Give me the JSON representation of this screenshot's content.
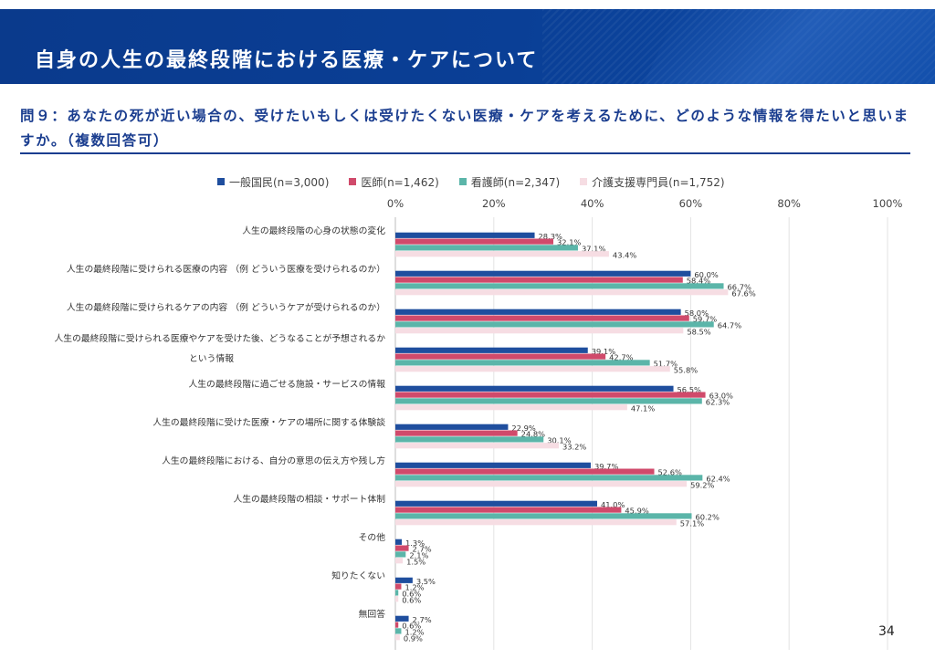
{
  "header": {
    "title": "自身の人生の最終段階における医療・ケアについて"
  },
  "question": {
    "text": "問９：あなたの死が近い場合の、受けたいもしくは受けたくない医療・ケアを考えるために、どのような情報を得たいと思いますか。（複数回答可）"
  },
  "page_number": "34",
  "chart_data": {
    "type": "bar",
    "orientation": "horizontal",
    "title": "",
    "xlim": [
      0,
      100
    ],
    "x_ticks": [
      "0%",
      "20%",
      "40%",
      "60%",
      "80%",
      "100%"
    ],
    "legend_position": "top",
    "categories": [
      [
        "人生の最終段階の心身の状態の変化"
      ],
      [
        "人生の最終段階に受けられる医療の内容 （例 どういう医療を受けられるのか）"
      ],
      [
        "人生の最終段階に受けられるケアの内容 （例 どういうケアが受けられるのか）"
      ],
      [
        "人生の最終段階に受けられる医療やケアを受けた後、どうなることが予想されるか",
        "という情報"
      ],
      [
        "人生の最終段階に過ごせる施設・サービスの情報"
      ],
      [
        "人生の最終段階に受けた医療・ケアの場所に関する体験談"
      ],
      [
        "人生の最終段階における、自分の意思の伝え方や残し方"
      ],
      [
        "人生の最終段階の相談・サポート体制"
      ],
      [
        "その他"
      ],
      [
        "知りたくない"
      ],
      [
        "無回答"
      ]
    ],
    "series": [
      {
        "name": "一般国民(n=3,000)",
        "color": "#1f4e9e",
        "values": [
          28.3,
          60.0,
          58.0,
          39.1,
          56.5,
          22.9,
          39.7,
          41.0,
          1.3,
          3.5,
          2.7
        ],
        "labels": [
          "28.3%",
          "60.0%",
          "58.0%",
          "39.1%",
          "56.5%",
          "22.9%",
          "39.7%",
          "41.0%",
          "1.3%",
          "3.5%",
          "2.7%"
        ]
      },
      {
        "name": "医師(n=1,462)",
        "color": "#d04a6b",
        "values": [
          32.1,
          58.4,
          59.7,
          42.7,
          63.0,
          24.8,
          52.6,
          45.9,
          2.7,
          1.2,
          0.6
        ],
        "labels": [
          "32.1%",
          "58.4%",
          "59.7%",
          "42.7%",
          "63.0%",
          "24.8%",
          "52.6%",
          "45.9%",
          "2.7%",
          "1.2%",
          "0.6%"
        ]
      },
      {
        "name": "看護師(n=2,347)",
        "color": "#5bb5a9",
        "values": [
          37.1,
          66.7,
          64.7,
          51.7,
          62.3,
          30.1,
          62.4,
          60.2,
          2.1,
          0.6,
          1.2
        ],
        "labels": [
          "37.1%",
          "66.7%",
          "64.7%",
          "51.7%",
          "62.3%",
          "30.1%",
          "62.4%",
          "60.2%",
          "2.1%",
          "0.6%",
          "1.2%"
        ]
      },
      {
        "name": "介護支援専門員(n=1,752)",
        "color": "#f6dde3",
        "values": [
          43.4,
          67.6,
          58.5,
          55.8,
          47.1,
          33.2,
          59.2,
          57.1,
          1.5,
          0.6,
          0.9
        ],
        "labels": [
          "43.4%",
          "67.6%",
          "58.5%",
          "55.8%",
          "47.1%",
          "33.2%",
          "59.2%",
          "57.1%",
          "1.5%",
          "0.6%",
          "0.9%"
        ]
      }
    ]
  }
}
